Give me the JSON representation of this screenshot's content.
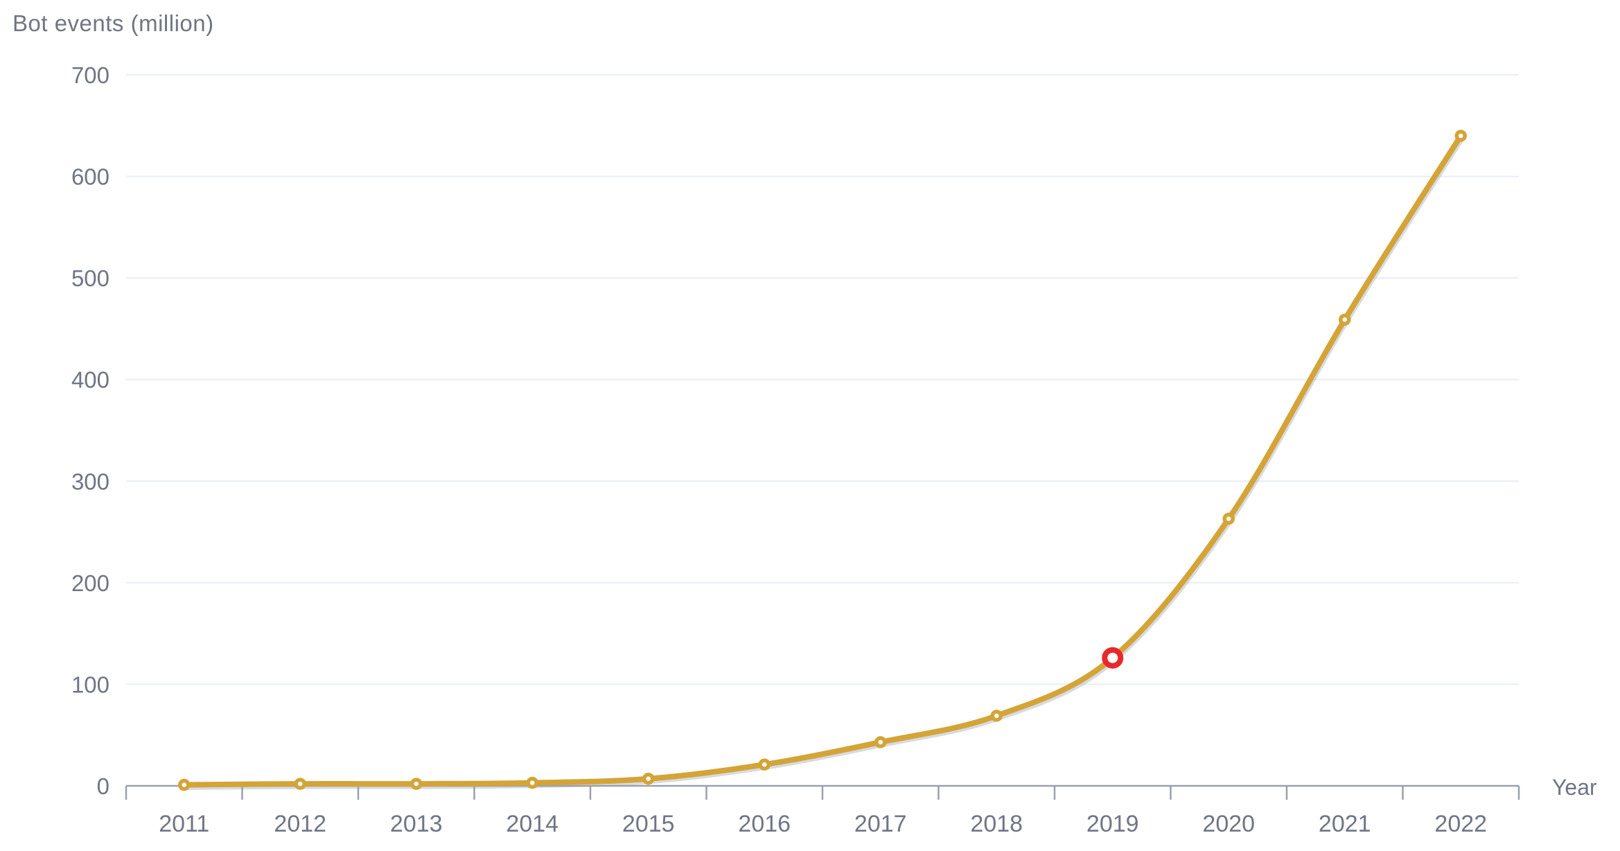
{
  "chart_data": {
    "type": "line",
    "title": "Bot events (million)",
    "xlabel": "Year",
    "ylabel": "Bot events (million)",
    "categories": [
      "2011",
      "2012",
      "2013",
      "2014",
      "2015",
      "2016",
      "2017",
      "2018",
      "2019",
      "2020",
      "2021",
      "2022"
    ],
    "series": [
      {
        "name": "Bot events (million)",
        "values": [
          1,
          2,
          2,
          3,
          7,
          21,
          43,
          69,
          126,
          263,
          459,
          640
        ]
      }
    ],
    "ylim": [
      0,
      700
    ],
    "yticks": [
      0,
      100,
      200,
      300,
      400,
      500,
      600,
      700
    ],
    "grid": true,
    "legend_position": "none",
    "highlight_point": {
      "category": "2019",
      "value": 126,
      "marker_color": "#e8282d"
    },
    "colors": {
      "line": "#d4a437",
      "marker_fill": "#ffffff",
      "highlight": "#e8282d",
      "grid": "#e8edf7",
      "axis": "#9aa0ab",
      "text": "#6f7585",
      "shadow": "#9ba4b5"
    }
  }
}
